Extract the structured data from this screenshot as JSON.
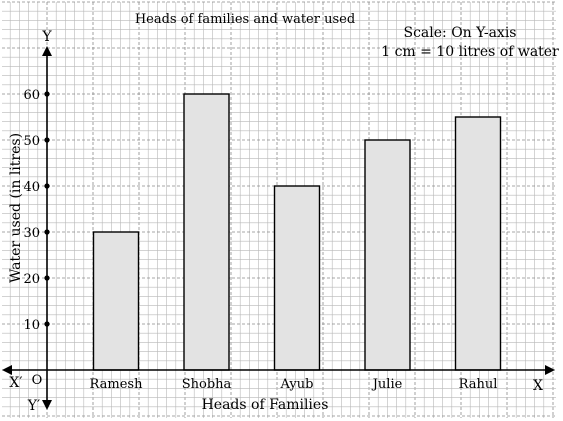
{
  "chart_data": {
    "type": "bar",
    "title": "Heads of families and water used",
    "scale_note": [
      "Scale: On Y-axis",
      "1 cm = 10 litres of water"
    ],
    "xlabel": "Heads of Families",
    "ylabel": "Water used (in litres)",
    "categories": [
      "Ramesh",
      "Shobha",
      "Ayub",
      "Julie",
      "Rahul"
    ],
    "values": [
      30,
      60,
      40,
      50,
      55
    ],
    "ylim": [
      0,
      70
    ],
    "yticks": [
      10,
      20,
      30,
      40,
      50,
      60
    ],
    "axis_letters": {
      "y": "Y",
      "x": "X",
      "x_neg": "X′",
      "y_neg": "Y′",
      "origin": "O"
    },
    "grid": true,
    "colors": {
      "bar_fill": "#e3e3e3",
      "bar_stroke": "#000000",
      "grid": "#b8b8b8"
    }
  }
}
